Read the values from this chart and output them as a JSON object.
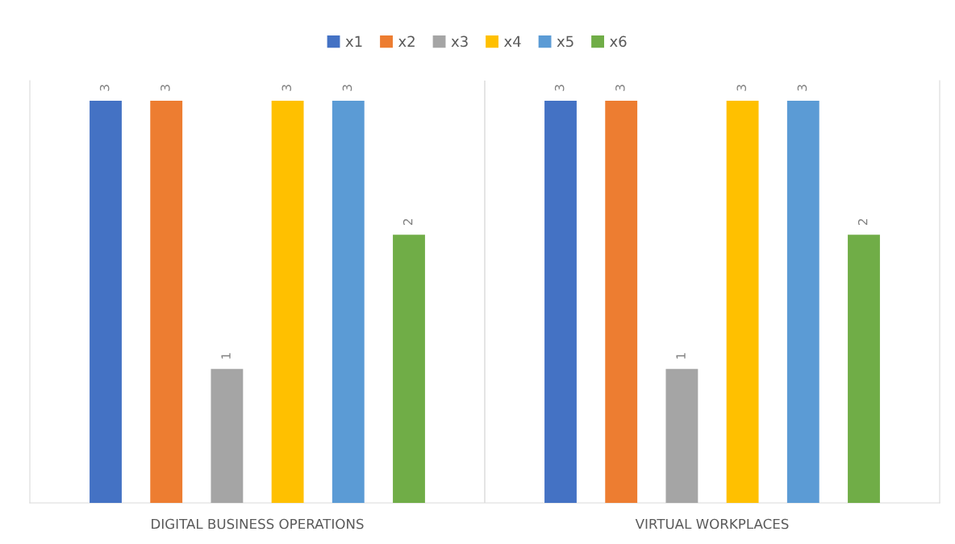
{
  "chart_data": {
    "type": "bar",
    "categories": [
      "DIGITAL BUSINESS OPERATIONS",
      "VIRTUAL WORKPLACES"
    ],
    "series": [
      {
        "name": "x1",
        "color": "#4472c4",
        "values": [
          3,
          3
        ]
      },
      {
        "name": "x2",
        "color": "#ed7d31",
        "values": [
          3,
          3
        ]
      },
      {
        "name": "x3",
        "color": "#a5a5a5",
        "values": [
          1,
          1
        ]
      },
      {
        "name": "x4",
        "color": "#ffc000",
        "values": [
          3,
          3
        ]
      },
      {
        "name": "x5",
        "color": "#5b9bd5",
        "values": [
          3,
          3
        ]
      },
      {
        "name": "x6",
        "color": "#70ad47",
        "values": [
          2,
          2
        ]
      }
    ],
    "data_labels": true,
    "legend": "top",
    "grid": false
  }
}
